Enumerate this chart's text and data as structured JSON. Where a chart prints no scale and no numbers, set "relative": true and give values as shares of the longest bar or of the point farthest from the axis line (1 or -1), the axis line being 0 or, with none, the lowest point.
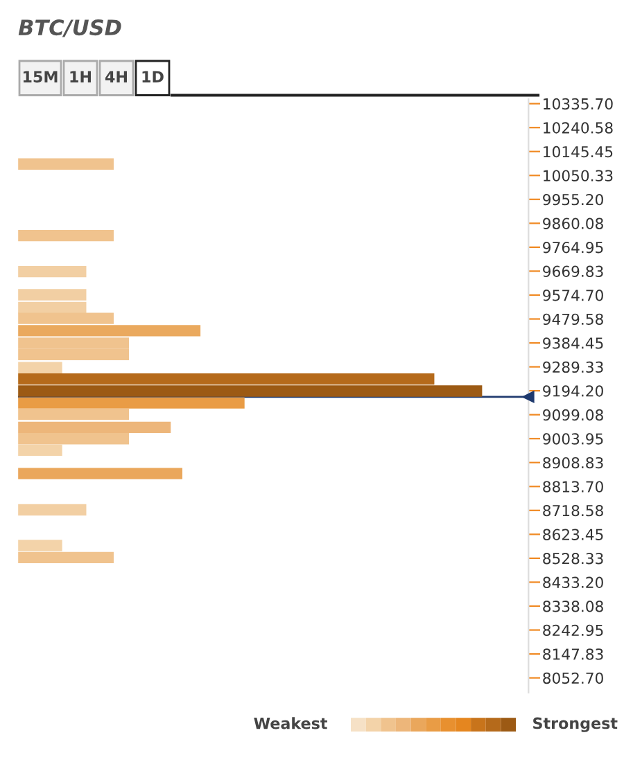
{
  "chart_data": {
    "type": "bar",
    "orientation": "horizontal",
    "relative": true,
    "title": "BTC/USD",
    "x": [
      10096,
      9811,
      9668,
      9576,
      9525,
      9482,
      9433,
      9383,
      9338,
      9286,
      9241,
      9193,
      9146,
      9101,
      9049,
      9004,
      8958,
      8865,
      8721,
      8579,
      8531
    ],
    "values": [
      0.206,
      0.206,
      0.147,
      0.147,
      0.147,
      0.206,
      0.393,
      0.239,
      0.239,
      0.095,
      0.897,
      1,
      0.488,
      0.239,
      0.329,
      0.239,
      0.095,
      0.354,
      0.147,
      0.095,
      0.206
    ],
    "colors": [
      "#f0c38e",
      "#f0c38e",
      "#f2cfa3",
      "#f2cfa3",
      "#f2cfa3",
      "#f0c38e",
      "#eaa95e",
      "#f0c38e",
      "#f0c38e",
      "#f3d3a9",
      "#b56a1b",
      "#9c5a14",
      "#e99c45",
      "#f0c38e",
      "#edb67a",
      "#f0c38e",
      "#f3d3a9",
      "#eaa75c",
      "#f2cfa3",
      "#f3d3a9",
      "#f0c38e"
    ],
    "ylim": [
      7994,
      10354
    ],
    "yticks": [
      {
        "value": 10335.7,
        "label": "10335.70"
      },
      {
        "value": 10240.58,
        "label": "10240.58"
      },
      {
        "value": 10145.45,
        "label": "10145.45"
      },
      {
        "value": 10050.33,
        "label": "10050.33"
      },
      {
        "value": 9955.2,
        "label": "9955.20"
      },
      {
        "value": 9860.08,
        "label": "9860.08"
      },
      {
        "value": 9764.95,
        "label": "9764.95"
      },
      {
        "value": 9669.83,
        "label": "9669.83"
      },
      {
        "value": 9574.7,
        "label": "9574.70"
      },
      {
        "value": 9479.58,
        "label": "9479.58"
      },
      {
        "value": 9384.45,
        "label": "9384.45"
      },
      {
        "value": 9289.33,
        "label": "9289.33"
      },
      {
        "value": 9194.2,
        "label": "9194.20"
      },
      {
        "value": 9099.08,
        "label": "9099.08"
      },
      {
        "value": 9003.95,
        "label": "9003.95"
      },
      {
        "value": 8908.83,
        "label": "8908.83"
      },
      {
        "value": 8813.7,
        "label": "8813.70"
      },
      {
        "value": 8718.58,
        "label": "8718.58"
      },
      {
        "value": 8623.45,
        "label": "8623.45"
      },
      {
        "value": 8528.33,
        "label": "8528.33"
      },
      {
        "value": 8433.2,
        "label": "8433.20"
      },
      {
        "value": 8338.08,
        "label": "8338.08"
      },
      {
        "value": 8242.95,
        "label": "8242.95"
      },
      {
        "value": 8147.83,
        "label": "8147.83"
      },
      {
        "value": 8052.7,
        "label": "8052.70"
      }
    ],
    "ref_lines": [
      {
        "axis": "y",
        "value": 9170,
        "color": "#1f3a6e"
      }
    ],
    "annotations": [
      "15M",
      "1H",
      "4H",
      "1D",
      "Weakest",
      "Strongest"
    ]
  }
}
